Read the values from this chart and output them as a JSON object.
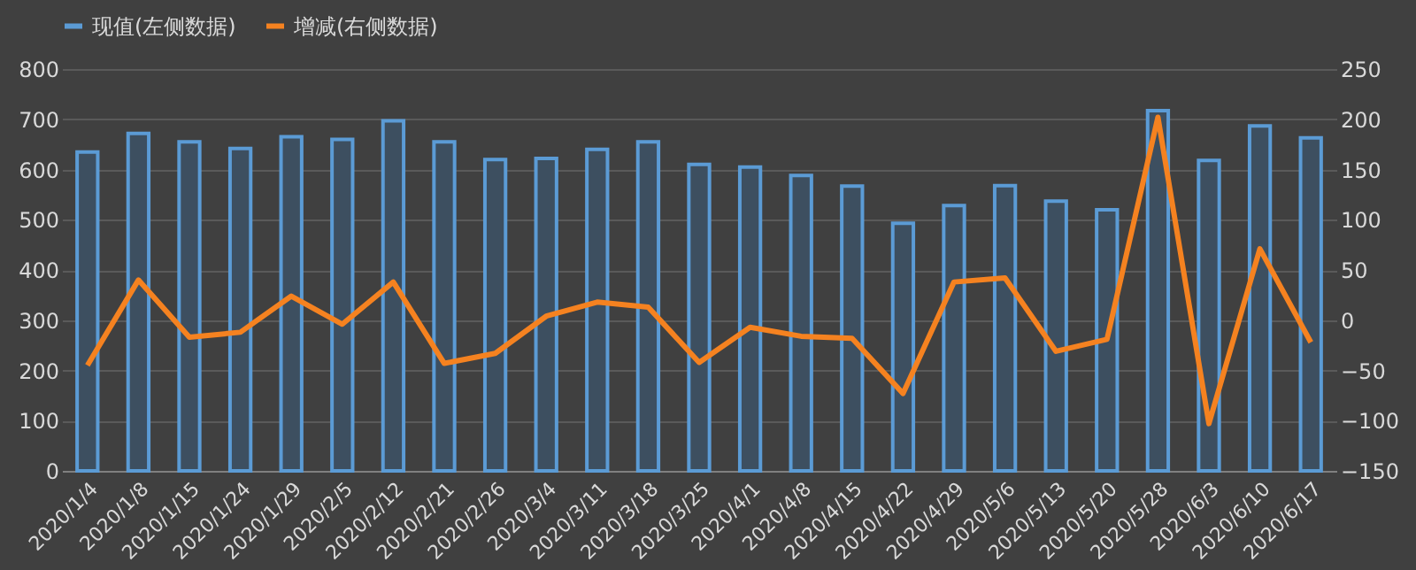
{
  "chart_data": {
    "type": "bar",
    "categories": [
      "2020/1/4",
      "2020/1/8",
      "2020/1/15",
      "2020/1/24",
      "2020/1/29",
      "2020/2/5",
      "2020/2/12",
      "2020/2/21",
      "2020/2/26",
      "2020/3/4",
      "2020/3/11",
      "2020/3/18",
      "2020/3/25",
      "2020/4/1",
      "2020/4/8",
      "2020/4/15",
      "2020/4/22",
      "2020/4/29",
      "2020/5/6",
      "2020/5/13",
      "2020/5/20",
      "2020/5/28",
      "2020/6/3",
      "2020/6/10",
      "2020/6/17"
    ],
    "series": [
      {
        "name": "现值(左侧数据)",
        "color": "#5b9bd5",
        "values": [
          635,
          672,
          655,
          642,
          665,
          660,
          697,
          655,
          620,
          622,
          640,
          655,
          610,
          605,
          588,
          567,
          493,
          528,
          568,
          537,
          520,
          717,
          618,
          687,
          663
        ]
      },
      {
        "name": "增减(右侧数据)",
        "type": "line",
        "axis": "y2",
        "color": "#f58220",
        "values": [
          -45,
          40,
          -17,
          -12,
          24,
          -4,
          38,
          -43,
          -33,
          4,
          18,
          13,
          -42,
          -7,
          -16,
          -18,
          -73,
          38,
          42,
          -31,
          -19,
          202,
          -103,
          71,
          -22
        ]
      }
    ],
    "ylim": [
      0,
      800
    ],
    "yticks": [
      0,
      100,
      200,
      300,
      400,
      500,
      600,
      700,
      800
    ],
    "y2lim": [
      -150,
      250
    ],
    "y2ticks": [
      -150,
      -100,
      -50,
      0,
      50,
      100,
      150,
      200,
      250
    ],
    "grid": "y",
    "legend": "top",
    "marker": "none",
    "line_style": "solid"
  }
}
